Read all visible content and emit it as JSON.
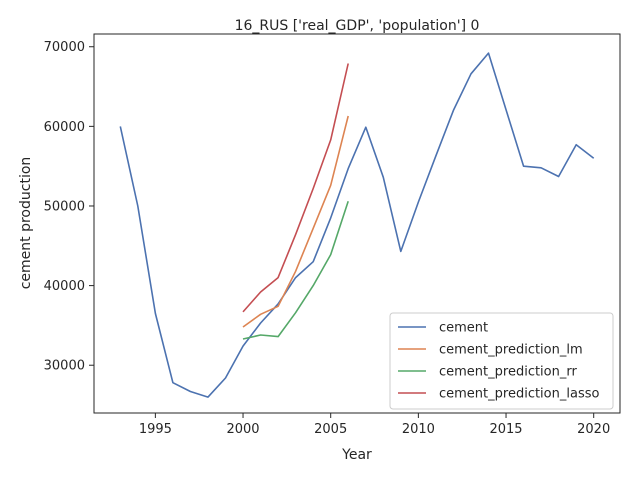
{
  "chart_data": {
    "type": "line",
    "title": "16_RUS ['real_GDP', 'population'] 0",
    "xlabel": "Year",
    "ylabel": "cement production",
    "xlim": [
      1991.5,
      2021.5
    ],
    "ylim": [
      24000,
      71600
    ],
    "xticks": [
      1995,
      2000,
      2005,
      2010,
      2015,
      2020
    ],
    "yticks": [
      30000,
      40000,
      50000,
      60000,
      70000
    ],
    "grid": false,
    "legend_position": "lower right",
    "series": [
      {
        "name": "cement",
        "color": "#4c72b0",
        "x": [
          1993,
          1994,
          1995,
          1996,
          1997,
          1998,
          1999,
          2000,
          2001,
          2002,
          2003,
          2004,
          2005,
          2006,
          2007,
          2008,
          2009,
          2010,
          2011,
          2012,
          2013,
          2014,
          2015,
          2016,
          2017,
          2018,
          2019,
          2020
        ],
        "y": [
          60000,
          50000,
          36500,
          27800,
          26700,
          26000,
          28400,
          32400,
          35300,
          37700,
          41000,
          43000,
          48500,
          54700,
          59900,
          53600,
          44300,
          50500,
          56300,
          62000,
          66600,
          69200,
          62100,
          55000,
          54800,
          53700,
          57700,
          56000
        ]
      },
      {
        "name": "cement_prediction_lm",
        "color": "#dd8452",
        "x": [
          2000,
          2001,
          2002,
          2003,
          2004,
          2005,
          2006
        ],
        "y": [
          34800,
          36400,
          37400,
          41800,
          47200,
          52600,
          61300
        ]
      },
      {
        "name": "cement_prediction_rr",
        "color": "#55a868",
        "x": [
          2000,
          2001,
          2002,
          2003,
          2004,
          2005,
          2006
        ],
        "y": [
          33300,
          33800,
          33600,
          36600,
          40000,
          43900,
          50600
        ]
      },
      {
        "name": "cement_prediction_lasso",
        "color": "#c44e52",
        "x": [
          2000,
          2001,
          2002,
          2003,
          2004,
          2005,
          2006
        ],
        "y": [
          36700,
          39200,
          41000,
          46400,
          52200,
          58300,
          67900
        ]
      }
    ]
  }
}
